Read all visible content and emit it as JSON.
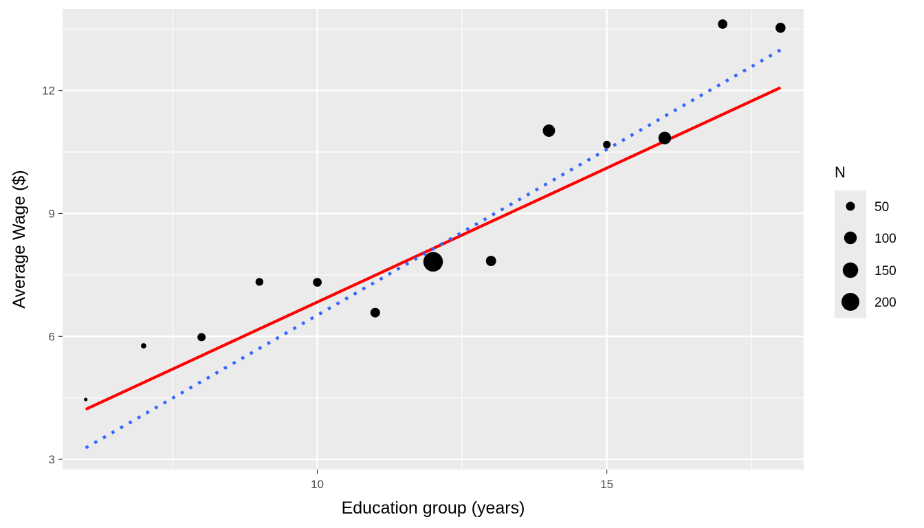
{
  "chart_data": {
    "type": "scatter",
    "title": "",
    "xlabel": "Education group (years)",
    "ylabel": "Average Wage ($)",
    "xlim": [
      5.6,
      18.4
    ],
    "ylim": [
      2.75,
      13.99
    ],
    "x_ticks": [
      10,
      15
    ],
    "x_minor_ticks": [
      7.5,
      12.5,
      17.5
    ],
    "y_ticks": [
      3,
      6,
      9,
      12
    ],
    "y_minor_ticks": [
      4.5,
      7.5,
      10.5,
      13.5
    ],
    "grid": true,
    "legend_position": "right",
    "size_legend": {
      "title": "N",
      "entries": [
        {
          "label": "50",
          "value": 50
        },
        {
          "label": "100",
          "value": 100
        },
        {
          "label": "150",
          "value": 150
        },
        {
          "label": "200",
          "value": 200
        }
      ]
    },
    "points": [
      {
        "x": 6,
        "y": 4.46,
        "n": 8
      },
      {
        "x": 7,
        "y": 5.77,
        "n": 18
      },
      {
        "x": 8,
        "y": 5.98,
        "n": 42
      },
      {
        "x": 9,
        "y": 7.33,
        "n": 38
      },
      {
        "x": 10,
        "y": 7.32,
        "n": 48
      },
      {
        "x": 11,
        "y": 6.58,
        "n": 58
      },
      {
        "x": 12,
        "y": 7.82,
        "n": 240
      },
      {
        "x": 13,
        "y": 7.84,
        "n": 66
      },
      {
        "x": 14,
        "y": 11.02,
        "n": 95
      },
      {
        "x": 15,
        "y": 10.68,
        "n": 36
      },
      {
        "x": 16,
        "y": 10.84,
        "n": 100
      },
      {
        "x": 17,
        "y": 13.62,
        "n": 56
      },
      {
        "x": 18,
        "y": 13.53,
        "n": 63
      }
    ],
    "lines": [
      {
        "style": "solid",
        "color": "#ff0000",
        "x": [
          6,
          18
        ],
        "y": [
          4.22,
          12.07
        ]
      },
      {
        "style": "dotted",
        "color": "#3366ff",
        "x": [
          6,
          18
        ],
        "y": [
          3.28,
          12.99
        ]
      }
    ],
    "colors": {
      "panel_background": "#ebebeb",
      "grid": "#ffffff",
      "points": "#000000"
    }
  }
}
